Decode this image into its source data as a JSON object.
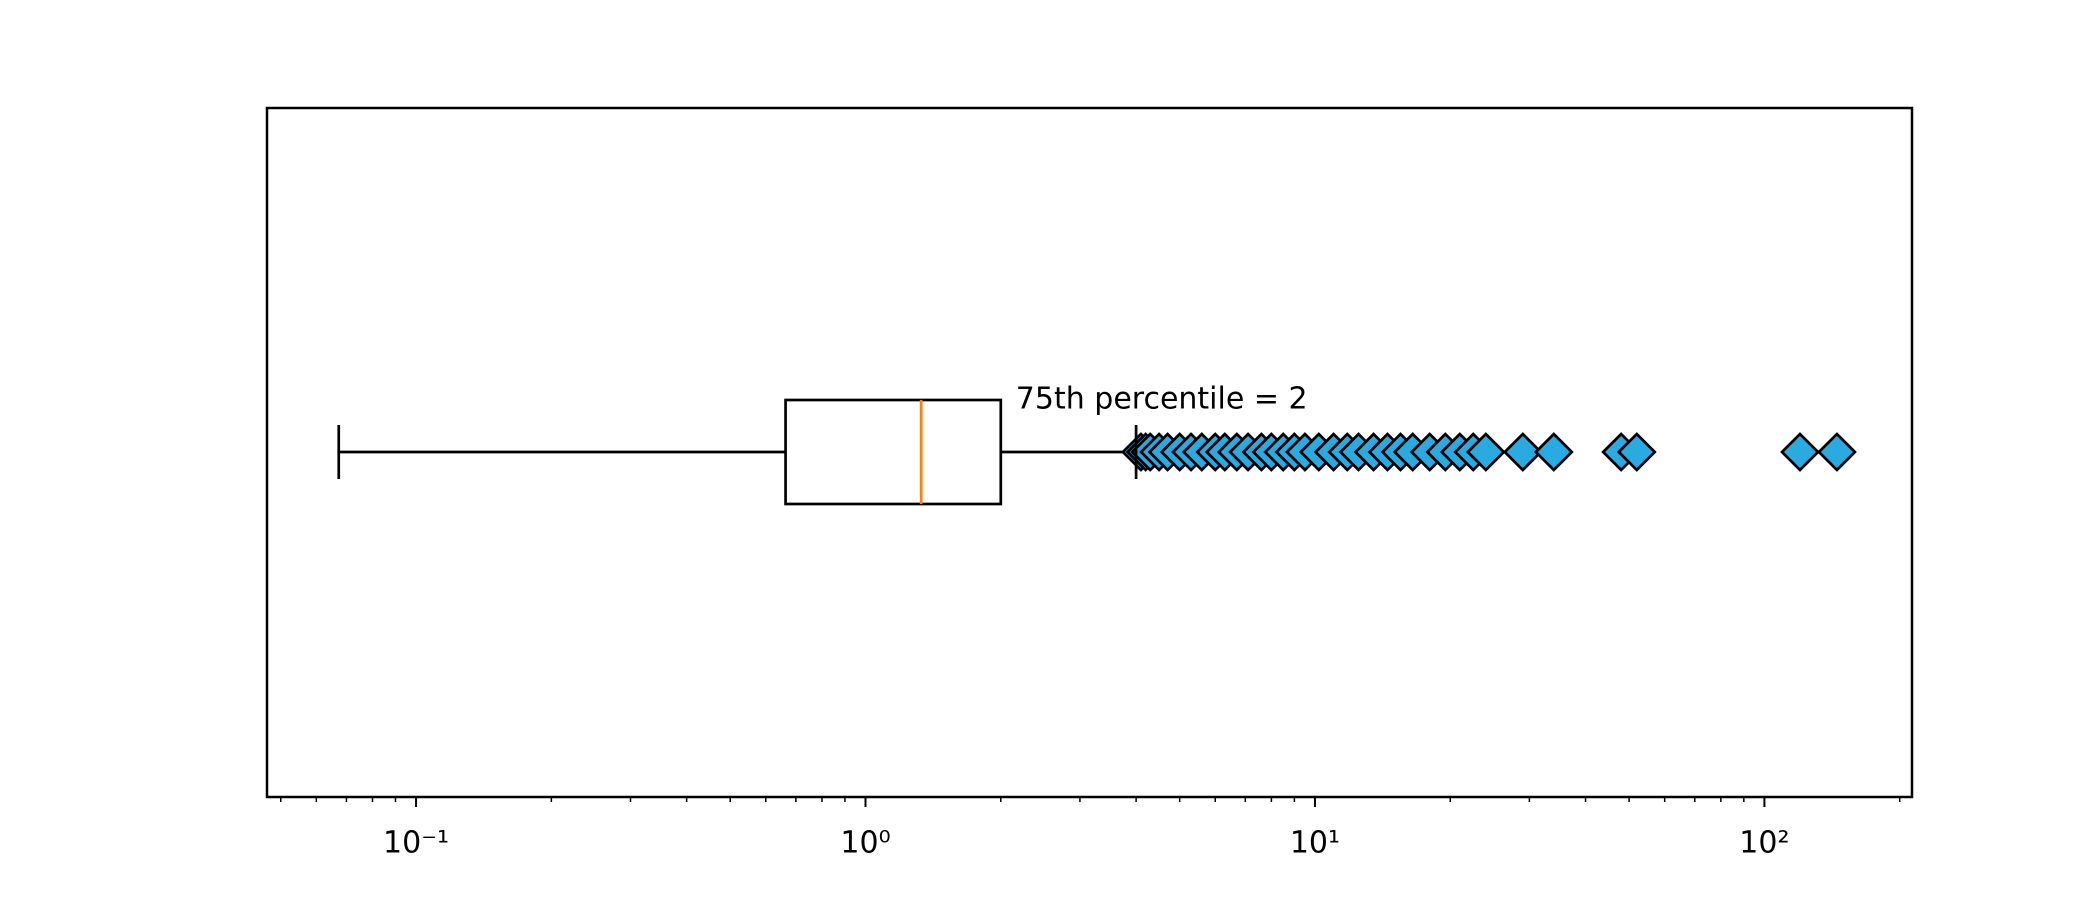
{
  "chart_data": {
    "type": "boxplot",
    "orientation": "horizontal",
    "xscale": "log",
    "annotation": "75th percentile = 2",
    "boxes": [
      {
        "whislo": 0.0673,
        "q1": 0.664,
        "med": 1.33,
        "q3": 2,
        "whishi": 4.0,
        "fliers": [
          4.1,
          4.2,
          4.3,
          4.5,
          4.7,
          5.0,
          5.3,
          5.6,
          6.0,
          6.3,
          6.7,
          7.1,
          7.6,
          8.0,
          8.5,
          9.0,
          9.5,
          10.2,
          11,
          11.8,
          12.5,
          13.5,
          14.5,
          15.5,
          16.5,
          18,
          19.5,
          21,
          22.5,
          24,
          29,
          34,
          48,
          52,
          120,
          145
        ]
      }
    ],
    "box_color": "#000000",
    "median_color": "#ff7f0e",
    "flier_color": "#29abe2",
    "xlim": [
      0.0466,
      213
    ],
    "xticks": [
      {
        "value": 0.1,
        "label": "10⁻¹"
      },
      {
        "value": 1,
        "label": "10⁰"
      },
      {
        "value": 10,
        "label": "10¹"
      },
      {
        "value": 100,
        "label": "10²"
      }
    ],
    "xminorticks": [
      0.05,
      0.06,
      0.07,
      0.08,
      0.09,
      0.2,
      0.3,
      0.4,
      0.5,
      0.6,
      0.7,
      0.8,
      0.9,
      2,
      3,
      4,
      5,
      6,
      7,
      8,
      9,
      20,
      30,
      40,
      50,
      60,
      70,
      80,
      90,
      200
    ]
  }
}
